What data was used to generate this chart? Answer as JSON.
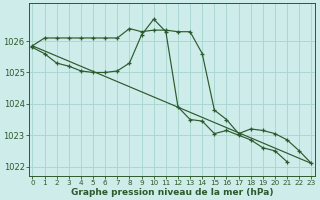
{
  "line1_x": [
    0,
    1,
    2,
    3,
    4,
    5,
    6,
    7,
    8,
    9,
    10,
    11,
    12,
    13,
    14,
    15,
    16,
    17,
    18,
    19,
    20,
    21,
    22,
    23
  ],
  "line1_y": [
    1025.85,
    1026.1,
    1026.1,
    1026.1,
    1026.1,
    1026.1,
    1026.1,
    1026.1,
    1026.4,
    1026.3,
    1026.35,
    1026.35,
    1026.3,
    1026.3,
    1025.6,
    1023.8,
    1023.5,
    1023.05,
    1023.2,
    1023.15,
    1023.05,
    1022.85,
    1022.5,
    1022.1
  ],
  "line2_x": [
    0,
    1,
    2,
    3,
    4,
    5,
    6,
    7,
    8,
    9,
    10,
    11,
    12,
    13,
    14,
    15,
    16,
    17,
    18,
    19,
    20,
    21,
    22,
    23
  ],
  "line2_y": [
    1025.8,
    1025.6,
    1025.3,
    1025.2,
    1025.05,
    1025.0,
    1025.0,
    1025.05,
    1025.3,
    1026.2,
    1026.7,
    1026.3,
    1023.9,
    1023.5,
    1023.45,
    1023.05,
    1023.15,
    1023.0,
    1022.85,
    1022.6,
    1022.5,
    1022.15,
    null,
    null
  ],
  "line3_x": [
    0,
    23
  ],
  "line3_y": [
    1025.85,
    1022.1
  ],
  "bg_color": "#ceecea",
  "grid_color": "#aad8d3",
  "line_color": "#2d5a2d",
  "xlabel": "Graphe pression niveau de la mer (hPa)",
  "ylim": [
    1021.7,
    1027.2
  ],
  "xlim": [
    -0.3,
    23.3
  ],
  "yticks": [
    1022,
    1023,
    1024,
    1025,
    1026
  ],
  "xticks": [
    0,
    1,
    2,
    3,
    4,
    5,
    6,
    7,
    8,
    9,
    10,
    11,
    12,
    13,
    14,
    15,
    16,
    17,
    18,
    19,
    20,
    21,
    22,
    23
  ],
  "tick_fontsize": 6,
  "xlabel_fontsize": 6.5
}
